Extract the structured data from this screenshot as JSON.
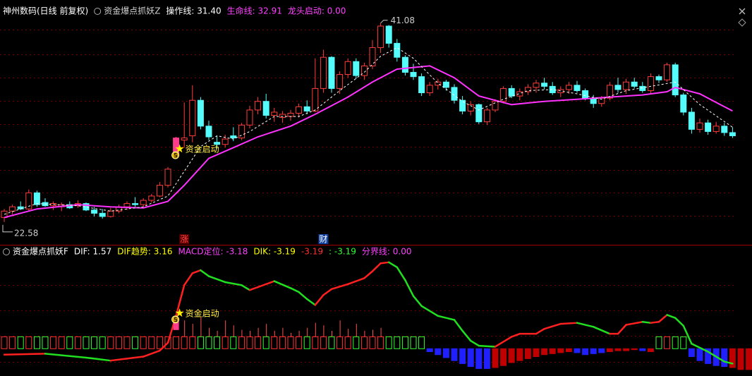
{
  "header": {
    "items": [
      {
        "text": "神州数码(日线 前复权)",
        "color": "#ffffff"
      },
      {
        "text": "资金爆点抓妖Z",
        "color": "#d0d0d0"
      },
      {
        "text": "操作线: 31.40",
        "color": "#ffffff"
      },
      {
        "text": "生命线: 32.91",
        "color": "#ff40ff"
      },
      {
        "text": "龙头启动: 0.00",
        "color": "#ff40ff"
      }
    ]
  },
  "chart_data": [
    {
      "type": "candlestick",
      "ylim": [
        20.6,
        42.7
      ],
      "up_color": "#ff3c3c",
      "down_color": "#54fcfc",
      "signal_color": "#ff3c8c",
      "high_label": "41.08",
      "low_label": "22.58",
      "ohlc": [
        [
          23.0,
          23.8,
          22.58,
          23.6
        ],
        [
          23.6,
          24.2,
          23.3,
          24.0
        ],
        [
          24.0,
          24.5,
          23.7,
          23.8
        ],
        [
          23.8,
          25.6,
          23.6,
          25.3
        ],
        [
          25.3,
          25.5,
          24.0,
          24.2
        ],
        [
          24.4,
          24.8,
          24.0,
          24.1
        ],
        [
          24.1,
          24.5,
          23.7,
          24.3
        ],
        [
          24.0,
          24.4,
          23.6,
          24.2
        ],
        [
          24.2,
          24.5,
          23.8,
          23.9
        ],
        [
          24.1,
          24.6,
          23.9,
          24.3
        ],
        [
          24.3,
          24.4,
          23.6,
          23.7
        ],
        [
          23.7,
          24.0,
          23.1,
          23.4
        ],
        [
          23.4,
          23.8,
          22.9,
          23.1
        ],
        [
          23.1,
          23.9,
          23.0,
          23.6
        ],
        [
          23.6,
          24.2,
          23.4,
          24.0
        ],
        [
          24.0,
          24.5,
          23.7,
          24.3
        ],
        [
          24.3,
          24.9,
          24.0,
          24.2
        ],
        [
          24.2,
          24.8,
          24.0,
          24.6
        ],
        [
          24.6,
          25.2,
          24.4,
          25.0
        ],
        [
          25.0,
          26.3,
          24.9,
          26.0
        ],
        [
          26.0,
          27.7,
          25.8,
          27.5
        ],
        [
          28.8,
          30.5,
          28.6,
          30.4
        ],
        [
          30.2,
          33.7,
          29.5,
          30.4
        ],
        [
          30.6,
          35.3,
          30.0,
          33.9
        ],
        [
          33.9,
          34.2,
          31.2,
          31.5
        ],
        [
          31.5,
          32.0,
          30.2,
          30.5
        ],
        [
          30.0,
          30.6,
          29.4,
          29.8
        ],
        [
          29.8,
          30.7,
          29.5,
          30.3
        ],
        [
          30.6,
          31.4,
          30.1,
          30.4
        ],
        [
          30.4,
          31.8,
          30.2,
          31.6
        ],
        [
          31.6,
          33.4,
          31.3,
          33.0
        ],
        [
          33.0,
          34.2,
          32.6,
          33.8
        ],
        [
          33.8,
          34.5,
          32.2,
          32.5
        ],
        [
          32.5,
          33.2,
          31.9,
          32.8
        ],
        [
          32.3,
          32.9,
          31.8,
          32.6
        ],
        [
          32.4,
          33.0,
          32.0,
          32.7
        ],
        [
          32.7,
          33.6,
          32.3,
          33.3
        ],
        [
          33.3,
          33.9,
          32.6,
          32.9
        ],
        [
          32.9,
          37.8,
          32.8,
          35.0
        ],
        [
          35.0,
          38.6,
          34.6,
          37.9
        ],
        [
          37.9,
          38.0,
          34.6,
          35.0
        ],
        [
          35.0,
          36.6,
          34.5,
          36.3
        ],
        [
          36.3,
          37.8,
          36.0,
          37.5
        ],
        [
          37.5,
          37.8,
          35.9,
          36.2
        ],
        [
          36.2,
          37.4,
          35.8,
          37.1
        ],
        [
          37.1,
          39.5,
          36.8,
          38.8
        ],
        [
          38.8,
          41.08,
          38.3,
          40.8
        ],
        [
          40.8,
          40.9,
          38.8,
          39.2
        ],
        [
          39.2,
          39.6,
          37.5,
          37.9
        ],
        [
          37.9,
          38.1,
          36.2,
          36.5
        ],
        [
          36.5,
          37.3,
          35.8,
          36.1
        ],
        [
          36.1,
          36.4,
          34.3,
          34.6
        ],
        [
          34.6,
          35.6,
          34.3,
          35.3
        ],
        [
          35.3,
          35.9,
          34.9,
          35.6
        ],
        [
          35.6,
          35.8,
          34.8,
          35.1
        ],
        [
          35.1,
          35.4,
          33.6,
          33.9
        ],
        [
          33.9,
          34.3,
          32.6,
          32.9
        ],
        [
          32.9,
          33.8,
          32.5,
          33.5
        ],
        [
          33.5,
          33.6,
          31.7,
          31.9
        ],
        [
          31.9,
          33.2,
          31.6,
          33.0
        ],
        [
          33.0,
          34.0,
          32.8,
          33.8
        ],
        [
          33.8,
          35.2,
          33.6,
          35.0
        ],
        [
          35.0,
          35.3,
          34.1,
          34.3
        ],
        [
          34.3,
          35.0,
          33.9,
          34.7
        ],
        [
          34.7,
          35.4,
          34.4,
          35.1
        ],
        [
          35.1,
          35.8,
          34.6,
          35.5
        ],
        [
          35.5,
          36.0,
          34.9,
          35.2
        ],
        [
          35.2,
          35.6,
          34.4,
          34.6
        ],
        [
          34.6,
          35.2,
          34.2,
          34.9
        ],
        [
          34.9,
          35.6,
          34.5,
          35.3
        ],
        [
          35.3,
          35.7,
          34.6,
          34.8
        ],
        [
          34.8,
          35.0,
          33.9,
          34.1
        ],
        [
          34.1,
          34.4,
          33.2,
          33.6
        ],
        [
          33.6,
          34.3,
          33.3,
          34.1
        ],
        [
          34.1,
          35.6,
          33.9,
          35.3
        ],
        [
          35.3,
          36.0,
          34.6,
          34.9
        ],
        [
          34.9,
          35.9,
          34.5,
          35.6
        ],
        [
          35.6,
          36.0,
          35.0,
          35.2
        ],
        [
          35.2,
          35.6,
          34.6,
          34.8
        ],
        [
          34.8,
          36.4,
          34.5,
          36.1
        ],
        [
          36.1,
          36.3,
          35.5,
          35.8
        ],
        [
          35.8,
          37.4,
          35.6,
          37.2
        ],
        [
          37.2,
          37.4,
          34.2,
          34.4
        ],
        [
          34.4,
          34.6,
          32.5,
          32.8
        ],
        [
          32.8,
          33.2,
          30.8,
          31.2
        ],
        [
          31.2,
          32.2,
          30.9,
          31.8
        ],
        [
          31.8,
          32.1,
          30.7,
          31.0
        ],
        [
          31.0,
          31.9,
          30.8,
          31.5
        ],
        [
          31.5,
          31.8,
          30.6,
          30.9
        ],
        [
          30.9,
          31.4,
          30.4,
          30.6
        ]
      ],
      "lines": [
        {
          "color": "#ff32ff",
          "dashed": false,
          "x": [
            0,
            4,
            9,
            13,
            17,
            20,
            22,
            25,
            28,
            31,
            35,
            38,
            42,
            45,
            48,
            52,
            55,
            58,
            62,
            66,
            70,
            74,
            78,
            81,
            82,
            85,
            89
          ],
          "values": [
            23.0,
            23.8,
            24.2,
            24.0,
            23.9,
            24.5,
            26.0,
            28.5,
            29.5,
            30.5,
            31.5,
            32.6,
            34.2,
            35.6,
            36.8,
            37.1,
            36.0,
            34.3,
            33.5,
            33.8,
            34.0,
            34.2,
            34.4,
            34.7,
            35.1,
            34.5,
            32.91
          ]
        },
        {
          "color": "#ffffff",
          "dashed": true,
          "x": [
            0,
            4,
            9,
            13,
            17,
            20,
            22,
            24,
            26,
            28,
            30,
            33,
            36,
            38,
            41,
            44,
            46,
            48,
            50,
            53,
            56,
            58,
            61,
            64,
            67,
            70,
            73,
            76,
            79,
            82,
            85,
            89
          ],
          "values": [
            23.3,
            24.3,
            24.1,
            23.6,
            24.0,
            25.0,
            27.3,
            29.6,
            30.6,
            30.3,
            31.0,
            32.4,
            32.4,
            33.0,
            34.8,
            36.5,
            38.0,
            38.8,
            37.8,
            35.5,
            33.8,
            33.0,
            34.0,
            34.8,
            34.9,
            34.5,
            34.0,
            34.8,
            35.2,
            35.6,
            33.5,
            31.4
          ]
        }
      ],
      "signals": [
        {
          "index": 21,
          "label": "资金启动"
        }
      ],
      "markers": [
        {
          "index": 22,
          "label": "涨",
          "color": "#ff4040",
          "background": "#5a0000"
        },
        {
          "index": 39,
          "label": "财",
          "color": "#ffffff",
          "background": "#1040a0"
        }
      ]
    },
    {
      "type": "macd",
      "ylim": [
        -2.75,
        10.25
      ],
      "header": [
        {
          "text": "资金爆点抓妖F",
          "color": "#ffffff"
        },
        {
          "text": "DIF: 1.57",
          "color": "#ffffff"
        },
        {
          "text": "DIF趋势: 3.16",
          "color": "#ffff00"
        },
        {
          "text": "MACD定位: -3.18",
          "color": "#ff40ff"
        },
        {
          "text": "DIK: -3.19",
          "color": "#ffff00"
        },
        {
          "text": "-3.19",
          "color": "#ff3030"
        },
        {
          "text": ": -3.19",
          "color": "#30ff30"
        },
        {
          "text": "分界线: 0.00",
          "color": "#ff40ff"
        }
      ],
      "rise_color": "#ff2020",
      "fall_color": "#20e020",
      "bar_up_color": "#ff3030",
      "bar_down_color": "#30ff30",
      "neg_fall_color": "#2020ff",
      "neg_rise_color": "#c00000",
      "line": {
        "x": [
          0,
          5,
          10,
          13,
          17,
          19,
          20,
          21,
          22,
          23,
          24,
          25,
          27,
          29,
          30,
          31,
          33,
          35,
          36,
          37,
          38,
          39,
          40,
          42,
          44,
          45,
          46,
          47,
          48,
          49,
          50,
          51,
          53,
          55,
          56,
          57,
          58,
          60,
          62,
          63,
          65,
          66,
          68,
          70,
          72,
          74,
          75,
          76,
          78,
          79,
          80,
          81,
          82,
          83,
          84,
          86,
          88,
          89
        ],
        "values": [
          -0.6,
          -0.5,
          -0.9,
          -1.2,
          -0.8,
          -0.2,
          0.6,
          3.3,
          6.4,
          7.6,
          7.9,
          7.3,
          6.7,
          6.4,
          5.9,
          6.2,
          6.8,
          6.1,
          5.7,
          5.0,
          4.4,
          5.4,
          6.0,
          6.5,
          7.1,
          7.8,
          8.6,
          8.7,
          8.2,
          6.9,
          5.3,
          4.3,
          3.3,
          2.9,
          1.8,
          0.8,
          0.3,
          0.2,
          1.2,
          1.5,
          1.5,
          2.0,
          2.5,
          2.6,
          2.2,
          1.5,
          1.5,
          2.4,
          2.7,
          2.6,
          2.7,
          3.4,
          3.1,
          2.3,
          0.5,
          -0.3,
          -1.3,
          -1.5
        ]
      },
      "bars": [
        1.2,
        1.2,
        1.2,
        1.2,
        1.2,
        1.2,
        1.2,
        1.2,
        1.2,
        1.2,
        1.2,
        1.2,
        1.2,
        1.2,
        1.2,
        1.2,
        1.2,
        1.2,
        1.2,
        1.2,
        1.2,
        1.2,
        1.2,
        1.2,
        1.2,
        1.2,
        1.2,
        1.2,
        1.2,
        1.2,
        1.2,
        1.2,
        1.2,
        1.2,
        1.2,
        1.2,
        1.2,
        1.2,
        1.2,
        1.2,
        1.2,
        1.2,
        1.2,
        1.2,
        1.2,
        1.2,
        1.2,
        1.2,
        1.2,
        1.2,
        1.2,
        1.2,
        -0.3,
        -0.6,
        -0.9,
        -1.2,
        -1.5,
        -1.8,
        -2.0,
        -2.0,
        -1.9,
        -1.7,
        -1.4,
        -1.2,
        -1.0,
        -0.8,
        -0.6,
        -0.5,
        -0.4,
        -0.3,
        -0.4,
        -0.6,
        -0.5,
        -0.4,
        -0.3,
        -0.2,
        -0.2,
        -0.1,
        -0.2,
        -0.3,
        1.2,
        1.2,
        1.2,
        1.2,
        -0.8,
        -1.2,
        -1.5,
        -1.7,
        -1.8,
        -1.9,
        -2.1,
        -2.1
      ],
      "spikes": {
        "color": "#ff5050",
        "x": [
          22,
          23,
          24,
          25,
          26,
          27,
          28,
          29,
          30,
          31,
          32,
          33,
          34,
          35,
          36,
          37,
          38,
          39,
          40,
          41,
          42,
          43,
          44,
          45,
          46
        ],
        "values": [
          2.85,
          2.5,
          3.2,
          2.1,
          1.8,
          2.85,
          2.35,
          1.9,
          1.8,
          2.1,
          2.5,
          1.8,
          2.1,
          1.6,
          1.8,
          2.1,
          2.6,
          2.35,
          1.8,
          2.85,
          2.0,
          2.5,
          1.8,
          1.9,
          2.1
        ]
      },
      "signals": [
        {
          "index": 21,
          "label": "资金启动"
        }
      ]
    }
  ]
}
